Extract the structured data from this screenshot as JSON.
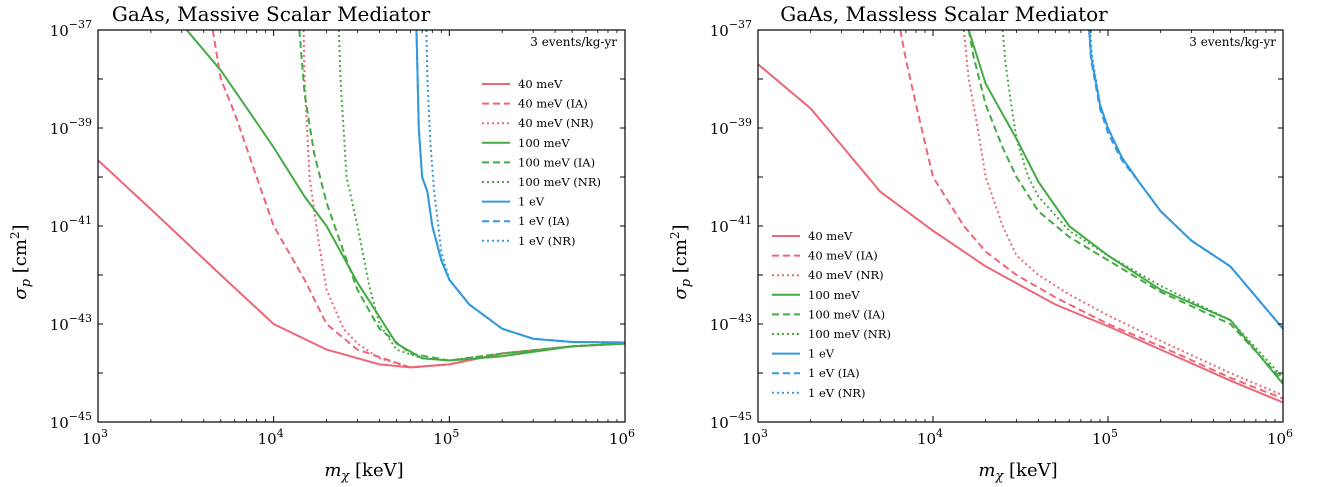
{
  "chart_data": [
    {
      "type": "line",
      "title": "GaAs, Massive Scalar Mediator",
      "xlabel": "m_χ [keV]",
      "ylabel": "σ_p [cm²]",
      "xscale": "log",
      "yscale": "log",
      "xlim": [
        1000,
        1000000
      ],
      "ylim": [
        1e-45,
        1e-37
      ],
      "xticks": [
        {
          "base": "10",
          "exp": "3"
        },
        {
          "base": "10",
          "exp": "4"
        },
        {
          "base": "10",
          "exp": "5"
        },
        {
          "base": "10",
          "exp": "6"
        }
      ],
      "yticks": [
        {
          "base": "10",
          "exp": "−45"
        },
        {
          "base": "10",
          "exp": "−43"
        },
        {
          "base": "10",
          "exp": "−41"
        },
        {
          "base": "10",
          "exp": "−39"
        },
        {
          "base": "10",
          "exp": "−37"
        }
      ],
      "annotation": "3 events/kg-yr",
      "legend_position": "right",
      "series": [
        {
          "name": "40 meV",
          "color": "#ee6677",
          "dash": "solid",
          "x": [
            1000,
            2000,
            5000,
            10000,
            20000,
            40000,
            60000,
            100000,
            200000,
            500000,
            1000000
          ],
          "y": [
            2.2e-40,
            2.2e-41,
            1e-42,
            1e-43,
            3e-44,
            1.5e-44,
            1.3e-44,
            1.5e-44,
            2.5e-44,
            3.5e-44,
            4e-44
          ]
        },
        {
          "name": "40 meV (IA)",
          "color": "#ee6677",
          "dash": "dashed",
          "x": [
            4500,
            5000,
            6000,
            8000,
            10000,
            15000,
            20000,
            30000,
            60000,
            100000,
            200000,
            500000,
            1000000
          ],
          "y": [
            1e-37,
            1e-38,
            2e-39,
            1e-40,
            1e-41,
            8e-43,
            1e-43,
            3e-44,
            1.3e-44,
            1.5e-44,
            2.5e-44,
            3.5e-44,
            4e-44
          ]
        },
        {
          "name": "40 meV (NR)",
          "color": "#ee6677",
          "dash": "dotted",
          "x": [
            14800,
            15000,
            16000,
            18000,
            20000,
            25000,
            30000,
            40000,
            60000,
            100000,
            200000,
            500000,
            1000000
          ],
          "y": [
            1e-37,
            1e-38,
            1e-40,
            5e-42,
            5e-43,
            8e-44,
            4e-44,
            2e-44,
            1.3e-44,
            1.5e-44,
            2.5e-44,
            3.5e-44,
            4e-44
          ]
        },
        {
          "name": "100 meV",
          "color": "#44aa44",
          "dash": "solid",
          "x": [
            3200,
            5000,
            8000,
            10000,
            15000,
            20000,
            30000,
            50000,
            70000,
            100000,
            200000,
            500000,
            1000000
          ],
          "y": [
            1e-37,
            1.5e-38,
            1.3e-39,
            4e-40,
            4e-41,
            1e-41,
            7e-43,
            4e-44,
            2e-44,
            1.8e-44,
            2.2e-44,
            3.5e-44,
            4e-44
          ]
        },
        {
          "name": "100 meV (IA)",
          "color": "#44aa44",
          "dash": "dashed",
          "x": [
            14000,
            15000,
            17000,
            20000,
            25000,
            30000,
            40000,
            60000,
            100000,
            200000,
            500000,
            1000000
          ],
          "y": [
            1e-37,
            5e-39,
            3e-40,
            3e-41,
            3e-42,
            5e-43,
            8e-44,
            2.5e-44,
            1.8e-44,
            2.5e-44,
            3.5e-44,
            4e-44
          ]
        },
        {
          "name": "100 meV (NR)",
          "color": "#44aa44",
          "dash": "dotted",
          "x": [
            23500,
            24000,
            26000,
            30000,
            35000,
            40000,
            50000,
            70000,
            100000,
            200000,
            500000,
            1000000
          ],
          "y": [
            1e-37,
            1e-38,
            1e-40,
            1e-41,
            6e-43,
            1e-43,
            3e-44,
            2e-44,
            1.8e-44,
            2.5e-44,
            3.5e-44,
            4e-44
          ]
        },
        {
          "name": "1 eV",
          "color": "#3399dd",
          "dash": "solid",
          "x": [
            65000,
            67000,
            70000,
            75000,
            80000,
            90000,
            100000,
            130000,
            200000,
            300000,
            500000,
            1000000
          ],
          "y": [
            1e-37,
            1e-39,
            1e-40,
            5e-41,
            1e-41,
            2e-42,
            8e-43,
            2.5e-43,
            8e-44,
            5e-44,
            4.3e-44,
            4.2e-44
          ]
        },
        {
          "name": "1 eV (IA)",
          "color": "#3399dd",
          "dash": "dashed",
          "x": [
            65000,
            67000,
            70000,
            75000,
            80000,
            90000,
            100000,
            130000,
            200000,
            300000,
            500000,
            1000000
          ],
          "y": [
            1e-37,
            1e-39,
            1e-40,
            5e-41,
            1e-41,
            2e-42,
            8e-43,
            2.5e-43,
            8e-44,
            5e-44,
            4.3e-44,
            4.2e-44
          ]
        },
        {
          "name": "1 eV (NR)",
          "color": "#3399dd",
          "dash": "dotted",
          "x": [
            74000,
            75000,
            78000,
            82000,
            90000,
            100000,
            130000,
            200000,
            300000,
            500000,
            1000000
          ],
          "y": [
            1e-37,
            1e-38,
            5e-40,
            5e-41,
            3e-42,
            8e-43,
            2.5e-43,
            8e-44,
            5e-44,
            4.3e-44,
            4.2e-44
          ]
        }
      ]
    },
    {
      "type": "line",
      "title": "GaAs, Massless Scalar Mediator",
      "xlabel": "m_χ [keV]",
      "ylabel": "σ_p [cm²]",
      "xscale": "log",
      "yscale": "log",
      "xlim": [
        1000,
        1000000
      ],
      "ylim": [
        1e-45,
        1e-37
      ],
      "xticks": [
        {
          "base": "10",
          "exp": "3"
        },
        {
          "base": "10",
          "exp": "4"
        },
        {
          "base": "10",
          "exp": "5"
        },
        {
          "base": "10",
          "exp": "6"
        }
      ],
      "yticks": [
        {
          "base": "10",
          "exp": "−45"
        },
        {
          "base": "10",
          "exp": "−43"
        },
        {
          "base": "10",
          "exp": "−41"
        },
        {
          "base": "10",
          "exp": "−39"
        },
        {
          "base": "10",
          "exp": "−37"
        }
      ],
      "annotation": "3 events/kg-yr",
      "legend_position": "lower left",
      "series": [
        {
          "name": "40 meV",
          "color": "#ee6677",
          "dash": "solid",
          "x": [
            1000,
            2000,
            5000,
            10000,
            20000,
            50000,
            100000,
            200000,
            500000,
            1000000
          ],
          "y": [
            2e-38,
            2.5e-39,
            5e-41,
            8e-42,
            1.5e-42,
            2.5e-43,
            9e-44,
            3e-44,
            7e-45,
            2.5e-45
          ]
        },
        {
          "name": "40 meV (IA)",
          "color": "#ee6677",
          "dash": "dashed",
          "x": [
            6500,
            7000,
            8000,
            10000,
            15000,
            20000,
            30000,
            50000,
            100000,
            200000,
            500000,
            1000000
          ],
          "y": [
            1e-37,
            2.5e-38,
            3e-39,
            1e-40,
            1e-41,
            3e-42,
            1e-42,
            3.5e-43,
            1e-43,
            3.5e-44,
            8e-45,
            3e-45
          ]
        },
        {
          "name": "40 meV (NR)",
          "color": "#ee6677",
          "dash": "dotted",
          "x": [
            15000,
            16000,
            18000,
            20000,
            25000,
            30000,
            40000,
            60000,
            100000,
            200000,
            500000,
            1000000
          ],
          "y": [
            1e-37,
            1e-38,
            1e-39,
            1e-40,
            1e-41,
            2.5e-42,
            1e-42,
            4e-43,
            1.5e-43,
            4.5e-44,
            1e-44,
            3.5e-45
          ]
        },
        {
          "name": "100 meV",
          "color": "#44aa44",
          "dash": "solid",
          "x": [
            16000,
            20000,
            30000,
            40000,
            60000,
            100000,
            200000,
            500000,
            1000000
          ],
          "y": [
            1e-37,
            8e-39,
            6e-40,
            8e-41,
            1e-41,
            2.5e-42,
            5e-43,
            1.2e-43,
            6e-45
          ]
        },
        {
          "name": "100 meV (IA)",
          "color": "#44aa44",
          "dash": "dashed",
          "x": [
            16000,
            17000,
            20000,
            25000,
            30000,
            40000,
            60000,
            100000,
            200000,
            500000,
            1000000
          ],
          "y": [
            1e-37,
            3e-38,
            3e-39,
            4e-40,
            1e-40,
            2e-41,
            6e-42,
            2e-42,
            4.5e-43,
            1e-43,
            7e-45
          ]
        },
        {
          "name": "100 meV (NR)",
          "color": "#44aa44",
          "dash": "dotted",
          "x": [
            25000,
            26000,
            28000,
            30000,
            35000,
            40000,
            60000,
            100000,
            200000,
            500000,
            1000000
          ],
          "y": [
            1e-37,
            2e-38,
            3e-39,
            6e-40,
            1e-40,
            4e-41,
            8e-42,
            2.5e-42,
            6e-43,
            1.2e-43,
            8e-45
          ]
        },
        {
          "name": "1 eV",
          "color": "#3399dd",
          "dash": "solid",
          "x": [
            78000,
            80000,
            90000,
            100000,
            120000,
            150000,
            200000,
            300000,
            500000,
            1000000
          ],
          "y": [
            1e-37,
            3e-38,
            3e-39,
            1e-39,
            2.5e-40,
            8e-41,
            2e-41,
            5e-42,
            1.5e-42,
            8e-44
          ]
        },
        {
          "name": "1 eV (IA)",
          "color": "#3399dd",
          "dash": "dashed",
          "x": [
            78000,
            80000,
            90000,
            100000,
            120000,
            150000,
            200000,
            300000,
            500000,
            1000000
          ],
          "y": [
            1e-37,
            2.5e-38,
            2.5e-39,
            8e-40,
            2.2e-40,
            8e-41,
            2e-41,
            5e-42,
            1.5e-42,
            8e-44
          ]
        },
        {
          "name": "1 eV (NR)",
          "color": "#3399dd",
          "dash": "dotted",
          "x": [
            79000,
            81000,
            90000,
            100000,
            120000,
            150000,
            200000,
            300000,
            500000,
            1000000
          ],
          "y": [
            1e-37,
            3e-38,
            3e-39,
            1e-39,
            2.5e-40,
            8e-41,
            2e-41,
            5e-42,
            1.5e-42,
            8e-44
          ]
        }
      ]
    }
  ]
}
